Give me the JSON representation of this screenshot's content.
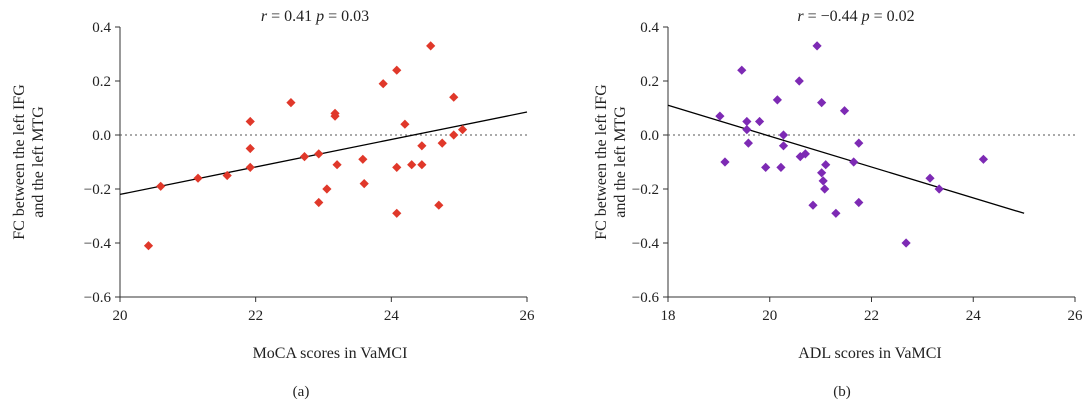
{
  "chart_data": [
    {
      "type": "scatter",
      "panel_label": "(a)",
      "stat": {
        "r_sym": "r",
        "r_val": " = 0.41 ",
        "p_sym": "p",
        "p_val": " = 0.03"
      },
      "xlabel": "MoCA scores in VaMCI",
      "ylabel": [
        "FC between the left IFG",
        "and the left MTG"
      ],
      "xlim": [
        20,
        26
      ],
      "ylim": [
        -0.6,
        0.4
      ],
      "xticks": [
        20,
        22,
        24,
        26
      ],
      "xtick_labels": [
        "20",
        "22",
        "24",
        "26"
      ],
      "yticks": [
        -0.6,
        -0.4,
        -0.2,
        0.0,
        0.2,
        0.4
      ],
      "ytick_labels": [
        "−0.6",
        "−0.4",
        "−0.2",
        "0.0",
        "0.2",
        "0.4"
      ],
      "reference_line_y": 0,
      "fit_line": {
        "x": [
          20,
          26
        ],
        "y": [
          -0.22,
          0.085
        ]
      },
      "marker_color": "#e0382a",
      "marker": "diamond",
      "grid": false,
      "points": [
        {
          "x": 20.42,
          "y": -0.41
        },
        {
          "x": 20.6,
          "y": -0.19
        },
        {
          "x": 21.15,
          "y": -0.16
        },
        {
          "x": 21.58,
          "y": -0.15
        },
        {
          "x": 21.92,
          "y": 0.05
        },
        {
          "x": 21.92,
          "y": -0.05
        },
        {
          "x": 21.92,
          "y": -0.12
        },
        {
          "x": 22.52,
          "y": 0.12
        },
        {
          "x": 22.72,
          "y": -0.08
        },
        {
          "x": 22.93,
          "y": -0.07
        },
        {
          "x": 22.93,
          "y": -0.25
        },
        {
          "x": 23.05,
          "y": -0.2
        },
        {
          "x": 23.17,
          "y": 0.08
        },
        {
          "x": 23.17,
          "y": 0.07
        },
        {
          "x": 23.2,
          "y": -0.11
        },
        {
          "x": 23.58,
          "y": -0.09
        },
        {
          "x": 23.6,
          "y": -0.18
        },
        {
          "x": 23.88,
          "y": 0.19
        },
        {
          "x": 24.08,
          "y": 0.24
        },
        {
          "x": 24.08,
          "y": -0.12
        },
        {
          "x": 24.08,
          "y": -0.29
        },
        {
          "x": 24.2,
          "y": 0.04
        },
        {
          "x": 24.3,
          "y": -0.11
        },
        {
          "x": 24.45,
          "y": -0.04
        },
        {
          "x": 24.45,
          "y": -0.11
        },
        {
          "x": 24.58,
          "y": 0.33
        },
        {
          "x": 24.7,
          "y": -0.26
        },
        {
          "x": 24.75,
          "y": -0.03
        },
        {
          "x": 24.92,
          "y": 0.14
        },
        {
          "x": 24.92,
          "y": 0.0
        },
        {
          "x": 25.05,
          "y": 0.02
        }
      ]
    },
    {
      "type": "scatter",
      "panel_label": "(b)",
      "stat": {
        "r_sym": "r",
        "r_val": " = −0.44 ",
        "p_sym": "p",
        "p_val": " = 0.02"
      },
      "xlabel": "ADL scores in VaMCI",
      "ylabel": [
        "FC between the left IFG",
        "and the left MTG"
      ],
      "xlim": [
        18,
        26
      ],
      "ylim": [
        -0.6,
        0.4
      ],
      "xticks": [
        18,
        20,
        22,
        24,
        26
      ],
      "xtick_labels": [
        "18",
        "20",
        "22",
        "24",
        "26"
      ],
      "yticks": [
        -0.6,
        -0.4,
        -0.2,
        0.0,
        0.2,
        0.4
      ],
      "ytick_labels": [
        "−0.6",
        "−0.4",
        "−0.2",
        "0.0",
        "0.2",
        "0.4"
      ],
      "reference_line_y": 0,
      "fit_line": {
        "x": [
          18,
          25
        ],
        "y": [
          0.11,
          -0.29
        ]
      },
      "marker_color": "#7d2ab4",
      "marker": "diamond",
      "grid": false,
      "points": [
        {
          "x": 19.02,
          "y": 0.07
        },
        {
          "x": 19.12,
          "y": -0.1
        },
        {
          "x": 19.45,
          "y": 0.24
        },
        {
          "x": 19.55,
          "y": 0.05
        },
        {
          "x": 19.55,
          "y": 0.02
        },
        {
          "x": 19.58,
          "y": -0.03
        },
        {
          "x": 19.8,
          "y": 0.05
        },
        {
          "x": 19.92,
          "y": -0.12
        },
        {
          "x": 20.15,
          "y": 0.13
        },
        {
          "x": 20.22,
          "y": -0.12
        },
        {
          "x": 20.27,
          "y": 0.0
        },
        {
          "x": 20.27,
          "y": -0.04
        },
        {
          "x": 20.58,
          "y": 0.2
        },
        {
          "x": 20.6,
          "y": -0.08
        },
        {
          "x": 20.7,
          "y": -0.07
        },
        {
          "x": 20.85,
          "y": -0.26
        },
        {
          "x": 20.93,
          "y": 0.33
        },
        {
          "x": 21.02,
          "y": 0.12
        },
        {
          "x": 21.02,
          "y": -0.14
        },
        {
          "x": 21.05,
          "y": -0.17
        },
        {
          "x": 21.08,
          "y": -0.2
        },
        {
          "x": 21.1,
          "y": -0.11
        },
        {
          "x": 21.3,
          "y": -0.29
        },
        {
          "x": 21.47,
          "y": 0.09
        },
        {
          "x": 21.65,
          "y": -0.1
        },
        {
          "x": 21.75,
          "y": -0.03
        },
        {
          "x": 21.75,
          "y": -0.25
        },
        {
          "x": 22.68,
          "y": -0.4
        },
        {
          "x": 23.15,
          "y": -0.16
        },
        {
          "x": 23.33,
          "y": -0.2
        },
        {
          "x": 24.2,
          "y": -0.09
        }
      ]
    }
  ]
}
